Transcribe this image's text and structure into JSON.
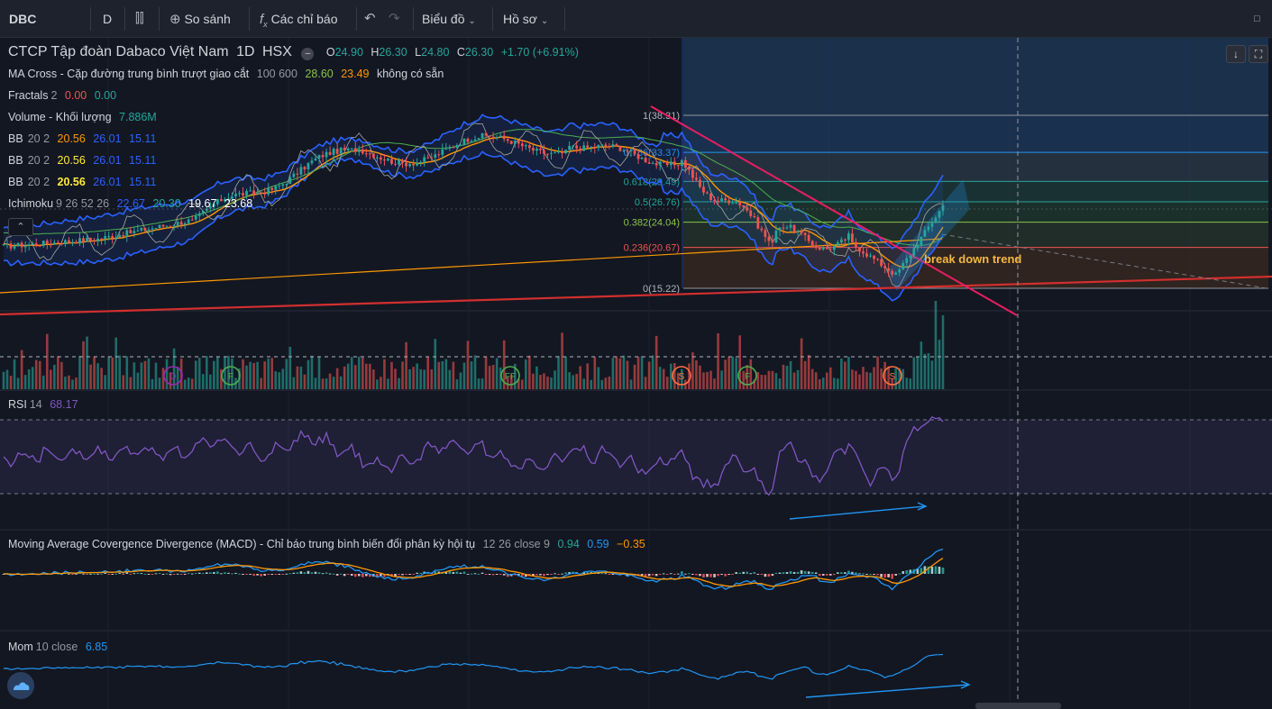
{
  "toolbar": {
    "symbol": "DBC",
    "interval": "D",
    "compare_label": "So sánh",
    "indicators_label": "Các chỉ báo",
    "chart_label": "Biểu đồ",
    "profile_label": "Hồ sơ"
  },
  "legend": {
    "title": "CTCP Tập đoàn Dabaco Việt Nam",
    "interval": "1D",
    "exchange": "HSX",
    "o_label": "O",
    "o": "24.90",
    "h_label": "H",
    "h": "26.30",
    "l_label": "L",
    "l": "24.80",
    "c_label": "C",
    "c": "26.30",
    "change": "+1.70 (+6.91%)",
    "ma_cross": {
      "name": "MA Cross - Cặp đường trung bình trượt giao cắt",
      "params": "100 600",
      "v1": "28.60",
      "v2": "23.49",
      "v3": "không có sẵn"
    },
    "fractals": {
      "name": "Fractals",
      "params": "2",
      "v1": "0.00",
      "v2": "0.00"
    },
    "volume": {
      "name": "Volume - Khối lượng",
      "value": "7.886M"
    },
    "bb1": {
      "name": "BB",
      "params": "20 2",
      "v1": "20.56",
      "v2": "26.01",
      "v3": "15.11"
    },
    "bb2": {
      "name": "BB",
      "params": "20 2",
      "v1": "20.56",
      "v2": "26.01",
      "v3": "15.11"
    },
    "bb3": {
      "name": "BB",
      "params": "20 2",
      "v1": "20.56",
      "v2": "26.01",
      "v3": "15.11"
    },
    "ichimoku": {
      "name": "Ichimoku",
      "params": "9 26 52 26",
      "v1": "22.67",
      "v2": "20.30",
      "v3": "19.67",
      "v4": "23.68"
    }
  },
  "panes": {
    "rsi": {
      "name": "RSI",
      "params": "14",
      "value": "68.17"
    },
    "macd": {
      "name": "Moving Average Covergence Divergence (MACD) - Chỉ báo trung bình biến đổi phân kỳ hội tụ",
      "params": "12 26 close 9",
      "v1": "0.94",
      "v2": "0.59",
      "v3": "−0.35"
    },
    "mom": {
      "name": "Mom",
      "params": "10 close",
      "value": "6.85"
    }
  },
  "annotations": {
    "break_down_trend": "break down trend",
    "fractal_markers": [
      "D",
      "F",
      "FF",
      "S",
      "F",
      "S"
    ]
  },
  "colors": {
    "background": "#131722",
    "up": "#26a69a",
    "down": "#ef5350",
    "bb": "#2962ff",
    "trendline_red": "#d32f2f",
    "trendline_pink": "#e91e63",
    "annotation": "#f5b841",
    "rsi": "#7e57c2"
  },
  "chart_data": {
    "type": "candlestick",
    "symbol": "DBC",
    "last": {
      "open": 24.9,
      "high": 26.3,
      "low": 24.8,
      "close": 26.3
    },
    "price_range": [
      15,
      38.5
    ],
    "fibonacci": [
      {
        "level": "1",
        "price": "38.31"
      },
      {
        "level": "0.786",
        "price": "33.37"
      },
      {
        "level": "0.618",
        "price": "29.49"
      },
      {
        "level": "0.5",
        "price": "26.76"
      },
      {
        "level": "0.382",
        "price": "24.04"
      },
      {
        "level": "0.236",
        "price": "20.67"
      },
      {
        "level": "0",
        "price": "15.22"
      }
    ],
    "rsi_last": 68.17,
    "macd_last": {
      "macd": 0.94,
      "signal": 0.59,
      "hist": -0.35
    },
    "mom_last": 6.85,
    "volume_last": "7.886M"
  }
}
